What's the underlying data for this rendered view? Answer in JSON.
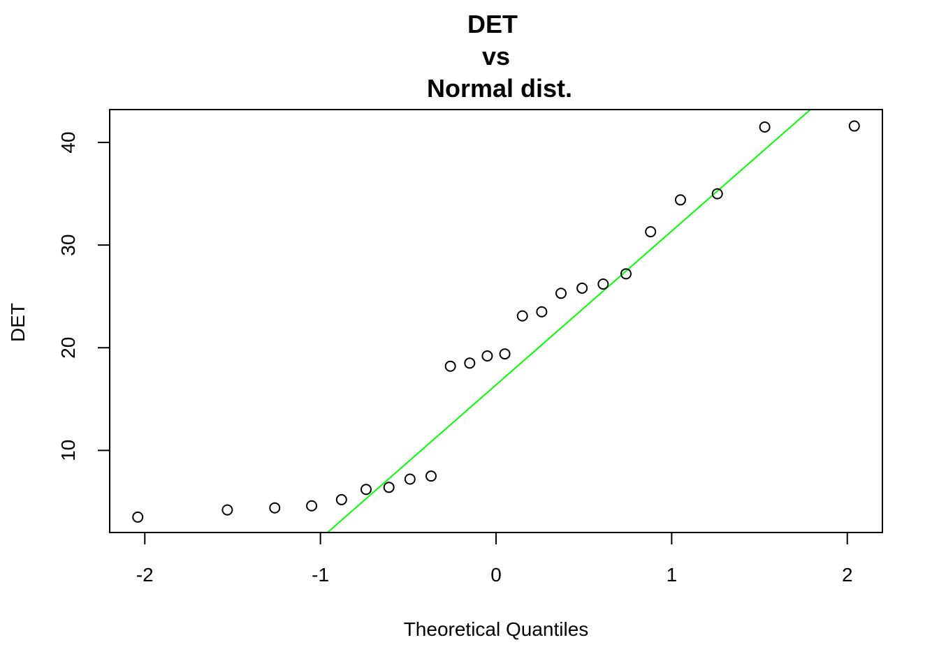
{
  "chart_data": {
    "type": "scatter",
    "title_lines": [
      "DET",
      "vs",
      "Normal dist."
    ],
    "xlabel": "Theoretical Quantiles",
    "ylabel": "DET",
    "xlim": [
      -2.2,
      2.2
    ],
    "ylim": [
      2.0,
      43.2
    ],
    "x_ticks": [
      -2,
      -1,
      0,
      1,
      2
    ],
    "x_tick_labels": [
      "-2",
      "-1",
      "0",
      "1",
      "2"
    ],
    "y_ticks": [
      10,
      20,
      30,
      40
    ],
    "y_tick_labels": [
      "10",
      "20",
      "30",
      "40"
    ],
    "grid": false,
    "points": {
      "x": [
        -2.04,
        -1.53,
        -1.26,
        -1.05,
        -0.88,
        -0.74,
        -0.61,
        -0.49,
        -0.37,
        -0.26,
        -0.15,
        -0.05,
        0.05,
        0.15,
        0.26,
        0.37,
        0.49,
        0.61,
        0.74,
        0.88,
        1.05,
        1.26,
        1.53,
        2.04
      ],
      "y": [
        3.5,
        4.2,
        4.4,
        4.6,
        5.2,
        6.2,
        6.4,
        7.2,
        7.5,
        18.2,
        18.5,
        19.2,
        19.4,
        23.1,
        23.5,
        25.3,
        25.8,
        26.2,
        27.2,
        31.3,
        34.4,
        35.0,
        41.5,
        41.6
      ]
    },
    "reference_line": {
      "color": "#00ff00",
      "x": [
        -0.96,
        1.79
      ],
      "y": [
        2.0,
        43.2
      ]
    },
    "point_style": "open-circle",
    "point_color": "#000000"
  }
}
